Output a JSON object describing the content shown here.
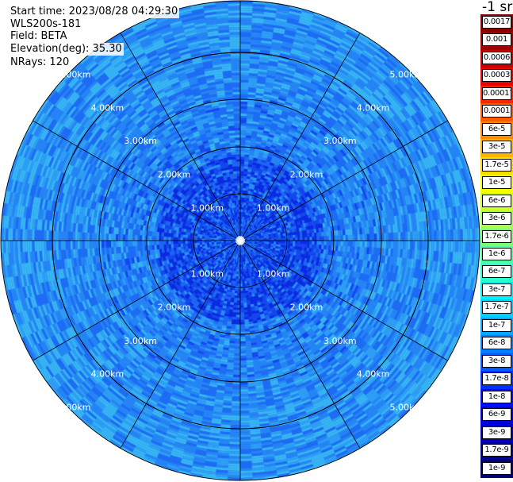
{
  "info": {
    "start_time": "Start time: 2023/08/28 04:29:30",
    "instrument": "WLS200s-181",
    "field": "Field: BETA",
    "elevation": "Elevation(deg): 35.30",
    "nrays": "NRays: 120"
  },
  "range_rings": {
    "labels": [
      "1.00km",
      "2.00km",
      "3.00km",
      "4.00km",
      "5.00km"
    ],
    "max_range_km": 5.0
  },
  "colorbar": {
    "units": "-1 sr",
    "labels": [
      "0.0017",
      "0.001",
      "0.0006",
      "0.0003",
      "0.00017",
      "0.0001",
      "6e-5",
      "3e-5",
      "1.7e-5",
      "1e-5",
      "6e-6",
      "3e-6",
      "1.7e-6",
      "1e-6",
      "6e-7",
      "3e-7",
      "1.7e-7",
      "1e-7",
      "6e-8",
      "3e-8",
      "1.7e-8",
      "1e-8",
      "6e-9",
      "3e-9",
      "1.7e-9",
      "1e-9"
    ],
    "colors": [
      "#8a0000",
      "#a30000",
      "#c80000",
      "#ec0000",
      "#ff2400",
      "#ff5a00",
      "#ff8a00",
      "#ffb400",
      "#ffdc00",
      "#f4ff00",
      "#cfff28",
      "#a6ff52",
      "#7dff7a",
      "#52ffa6",
      "#28ffd2",
      "#00f4ff",
      "#00d0ff",
      "#00a8ff",
      "#0080ff",
      "#0058ff",
      "#0030ff",
      "#0010ff",
      "#0000e0",
      "#0000b8",
      "#000090",
      "#00006c"
    ]
  },
  "colors": {
    "ring_color": "#000000",
    "label_color": "#ffffff",
    "field_base": "#1e6cf4",
    "field_light": "#2ea8f4",
    "field_dark": "#1040e8"
  }
}
